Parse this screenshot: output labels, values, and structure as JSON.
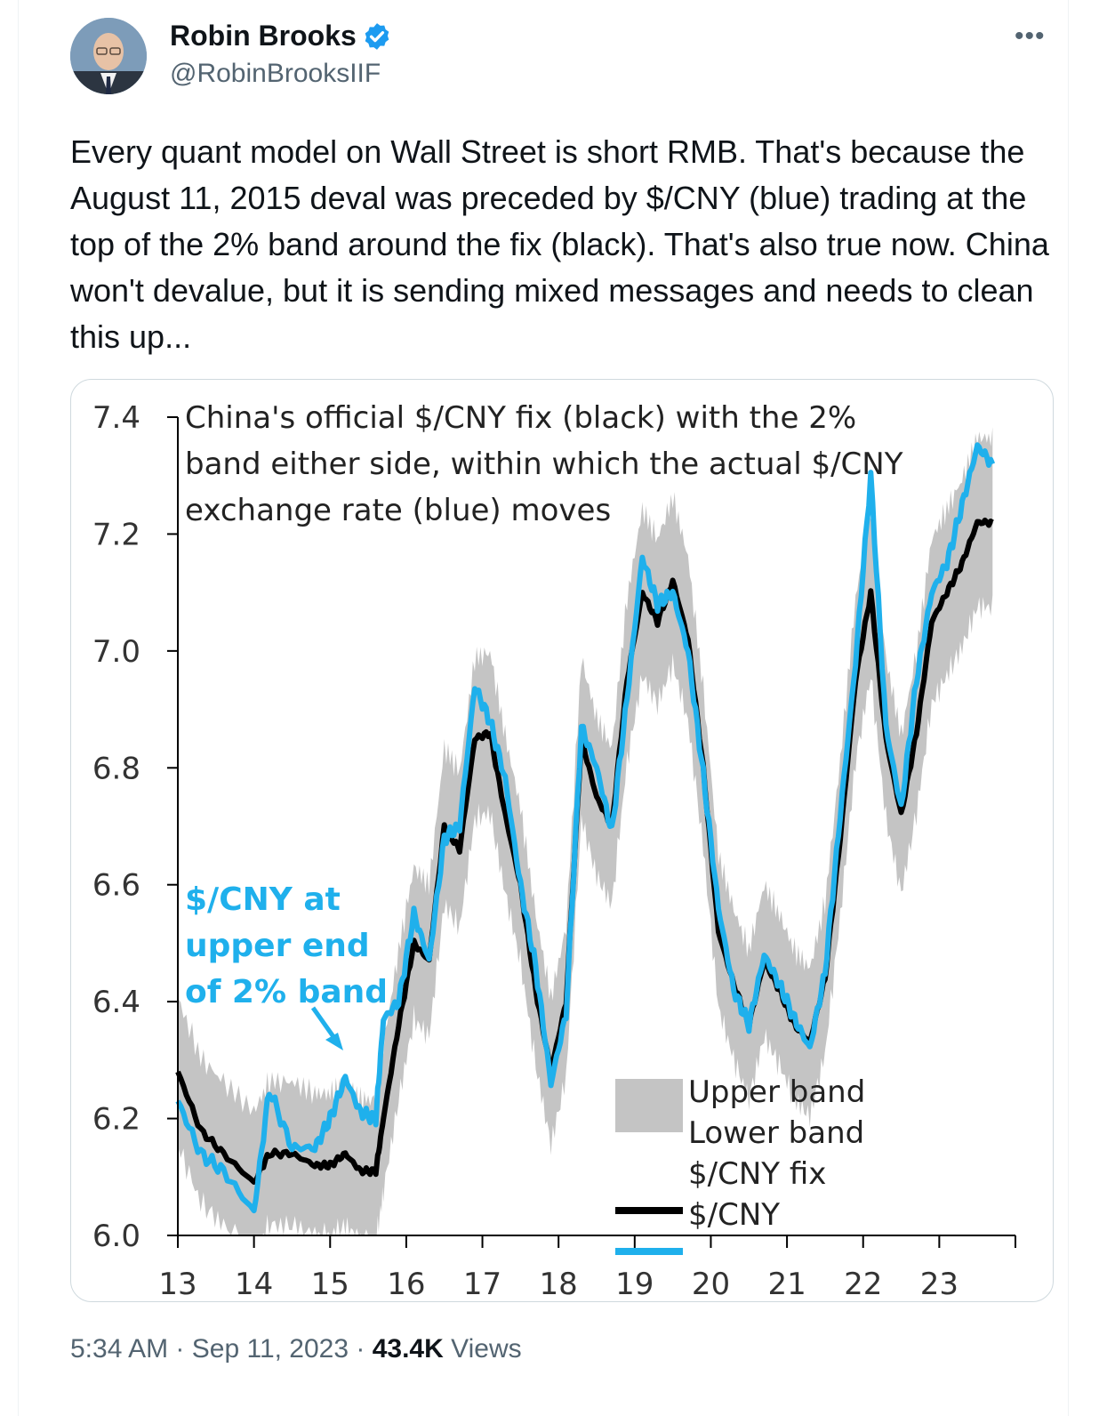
{
  "tweet": {
    "display_name": "Robin Brooks",
    "handle": "@RobinBrooksIIF",
    "more_label": "•••",
    "text": "Every quant model on Wall Street is short RMB. That's because the August 11, 2015 deval was preceded by $/CNY (blue) trading at the top of the 2% band around the fix (black). That's also true now. China won't devalue, but it is sending mixed messages and needs to clean this up...",
    "time": "5:34 AM",
    "separator": "·",
    "date": "Sep 11, 2023",
    "views_count": "43.4K",
    "views_label": "Views",
    "verified_color": "#1d9bf0"
  },
  "chart_data": {
    "type": "line",
    "title_lines": [
      "China's official $/CNY fix (black) with the 2%",
      "band either side, within which the actual $/CNY",
      "exchange rate (blue) moves"
    ],
    "annotation_lines": [
      "$/CNY at",
      "upper end",
      "of 2% band"
    ],
    "ylim": [
      6.0,
      7.4
    ],
    "yticks": [
      "6.0",
      "6.2",
      "6.4",
      "6.6",
      "6.8",
      "7.0",
      "7.2",
      "7.4"
    ],
    "xlim": [
      13,
      24
    ],
    "xticks": [
      "13",
      "14",
      "15",
      "16",
      "17",
      "18",
      "19",
      "20",
      "21",
      "22",
      "23"
    ],
    "legend": [
      "Upper band",
      "Lower band",
      "$/CNY fix",
      "$/CNY"
    ],
    "legend_position": "bottom-right",
    "colors": {
      "band": "#c4c4c4",
      "fix": "#000000",
      "spot": "#1fb0ec",
      "annotation": "#1fb0ec"
    },
    "x": [
      13.0,
      13.3,
      13.6,
      14.0,
      14.2,
      14.5,
      14.8,
      15.0,
      15.2,
      15.4,
      15.6,
      15.7,
      15.9,
      16.1,
      16.3,
      16.5,
      16.7,
      16.9,
      17.1,
      17.3,
      17.5,
      17.7,
      17.9,
      18.1,
      18.3,
      18.5,
      18.7,
      18.9,
      19.1,
      19.3,
      19.5,
      19.7,
      19.9,
      20.1,
      20.3,
      20.5,
      20.7,
      20.9,
      21.1,
      21.3,
      21.5,
      21.7,
      21.9,
      22.1,
      22.3,
      22.5,
      22.7,
      22.9,
      23.1,
      23.3,
      23.5,
      23.7
    ],
    "series": [
      {
        "name": "$/CNY fix",
        "values": [
          6.28,
          6.18,
          6.14,
          6.09,
          6.14,
          6.14,
          6.12,
          6.12,
          6.14,
          6.11,
          6.11,
          6.2,
          6.36,
          6.5,
          6.47,
          6.7,
          6.66,
          6.85,
          6.86,
          6.72,
          6.6,
          6.42,
          6.28,
          6.4,
          6.85,
          6.75,
          6.7,
          6.95,
          7.1,
          7.05,
          7.12,
          7.02,
          6.8,
          6.52,
          6.43,
          6.36,
          6.47,
          6.42,
          6.36,
          6.33,
          6.44,
          6.68,
          6.95,
          7.1,
          6.85,
          6.72,
          6.86,
          7.05,
          7.1,
          7.15,
          7.22,
          7.22
        ]
      },
      {
        "name": "$/CNY",
        "values": [
          6.23,
          6.14,
          6.11,
          6.04,
          6.25,
          6.15,
          6.15,
          6.2,
          6.27,
          6.21,
          6.2,
          6.37,
          6.4,
          6.55,
          6.47,
          6.68,
          6.7,
          6.94,
          6.88,
          6.78,
          6.6,
          6.46,
          6.26,
          6.38,
          6.87,
          6.8,
          6.69,
          6.92,
          7.16,
          7.08,
          7.1,
          7.0,
          6.79,
          6.56,
          6.42,
          6.36,
          6.48,
          6.43,
          6.37,
          6.32,
          6.45,
          6.72,
          6.98,
          7.3,
          6.87,
          6.73,
          6.95,
          7.1,
          7.15,
          7.25,
          7.35,
          7.32
        ]
      }
    ]
  }
}
